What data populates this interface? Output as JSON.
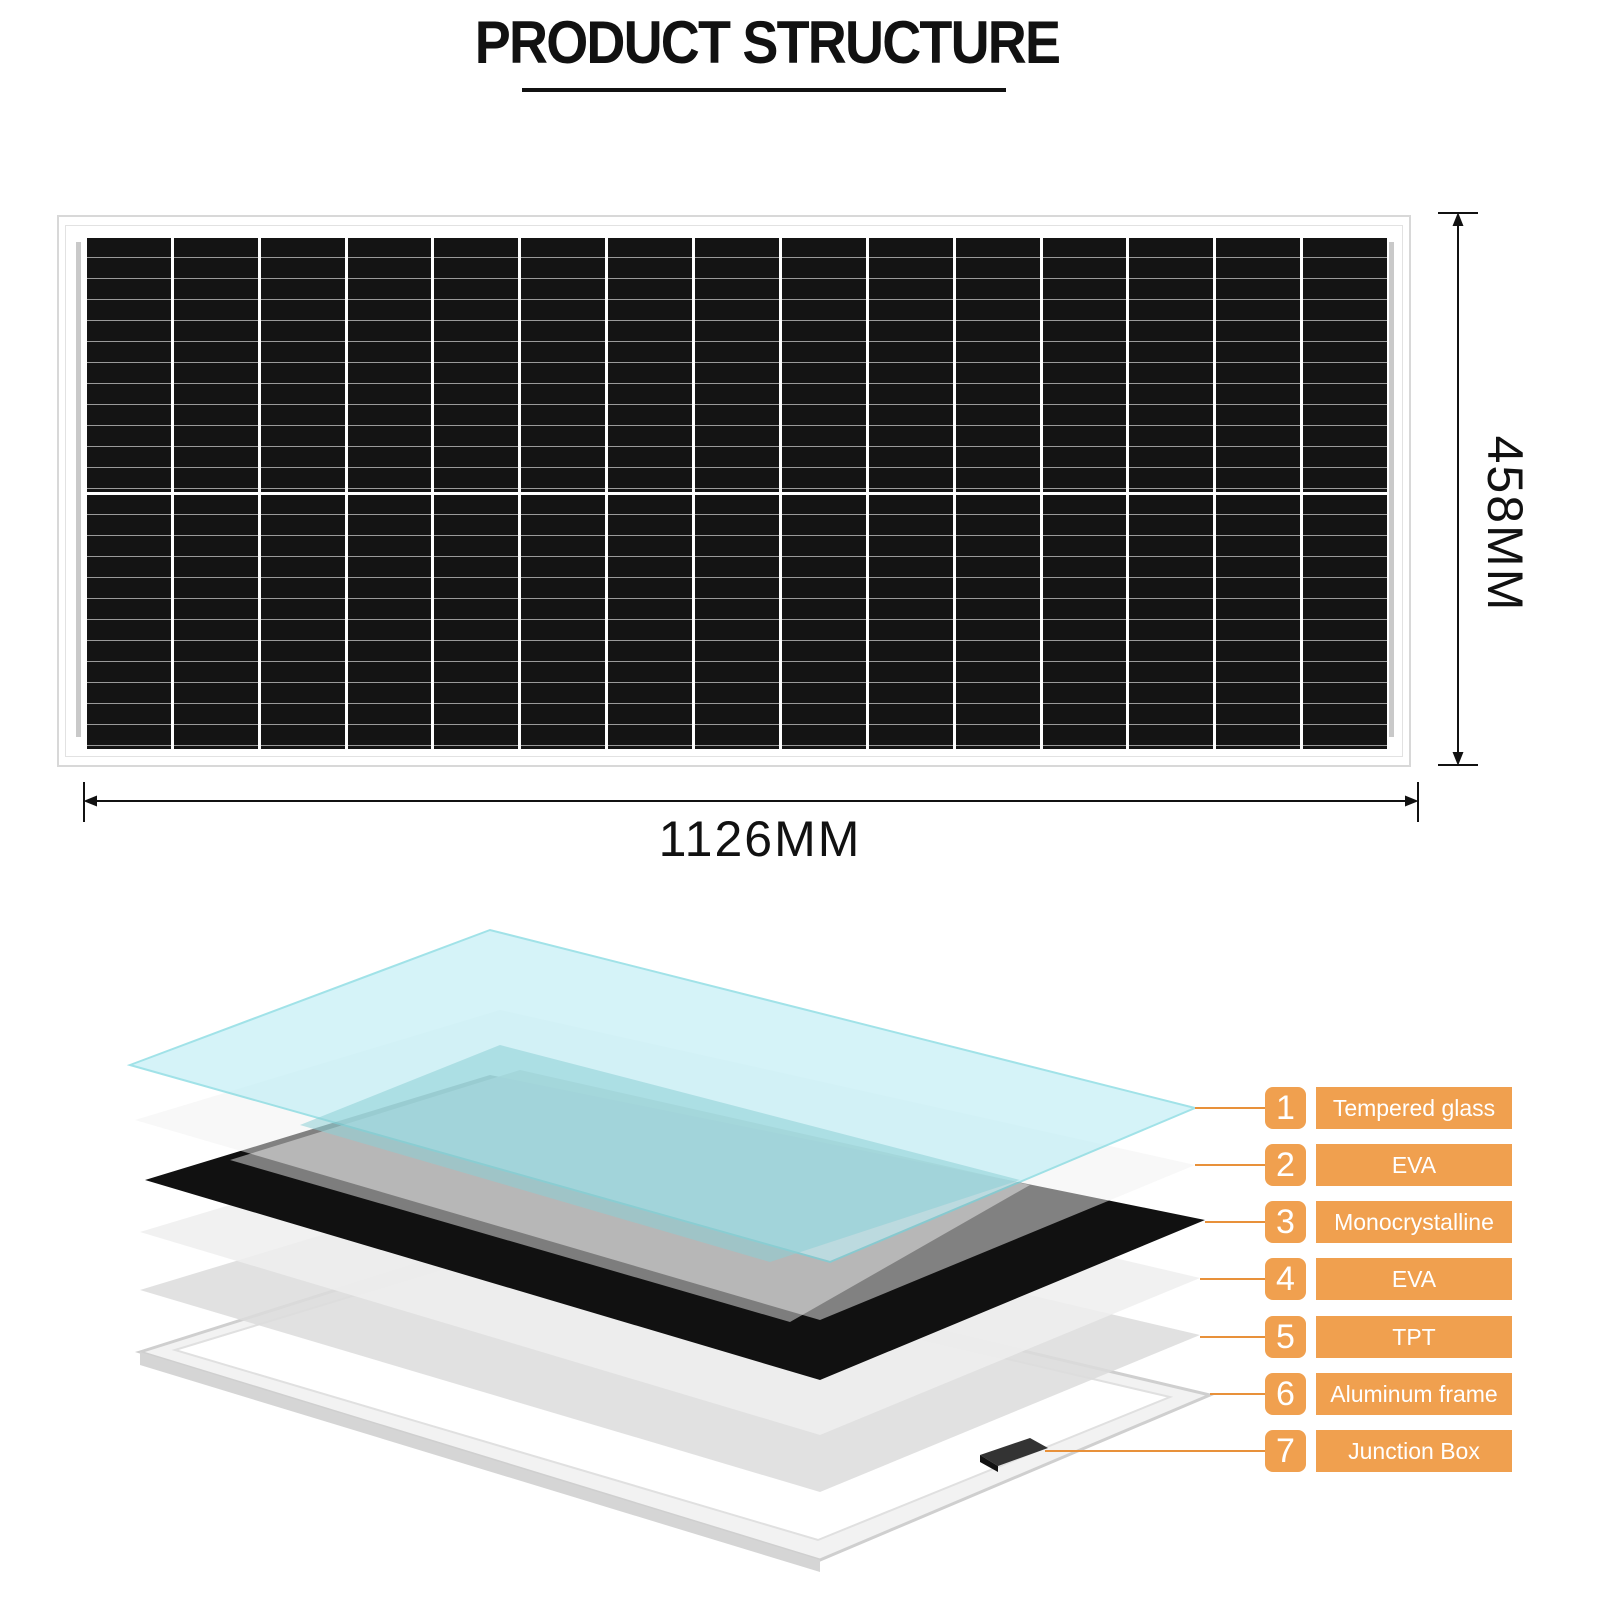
{
  "title": "PRODUCT STRUCTURE",
  "dimensions": {
    "width": "1126MM",
    "height": "458MM"
  },
  "panel": {
    "columns": 15,
    "rows": 2
  },
  "accent_color": "#f0a04f",
  "layers": [
    {
      "number": "1",
      "label": "Tempered glass"
    },
    {
      "number": "2",
      "label": "EVA"
    },
    {
      "number": "3",
      "label": "Monocrystalline"
    },
    {
      "number": "4",
      "label": "EVA"
    },
    {
      "number": "5",
      "label": "TPT"
    },
    {
      "number": "6",
      "label": "Aluminum frame"
    },
    {
      "number": "7",
      "label": "Junction Box"
    }
  ]
}
